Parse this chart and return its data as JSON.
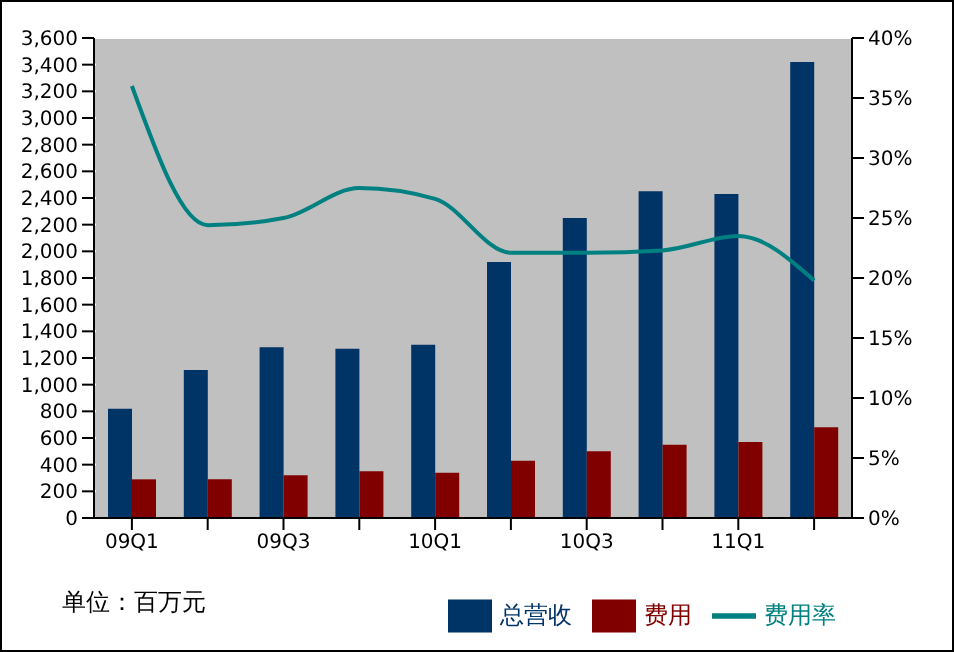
{
  "chart_data": {
    "type": "bar",
    "categories": [
      "09Q1",
      null,
      "09Q3",
      null,
      "10Q1",
      null,
      "10Q3",
      null,
      "11Q1",
      null
    ],
    "series": [
      {
        "name": "总营收",
        "color": "#003366",
        "values": [
          820,
          1110,
          1280,
          1270,
          1300,
          1920,
          2250,
          2450,
          2430,
          3420
        ]
      },
      {
        "name": "费用",
        "color": "#800000",
        "values": [
          290,
          290,
          320,
          350,
          340,
          430,
          500,
          550,
          570,
          680
        ]
      },
      {
        "name": "费用率",
        "type": "line",
        "axis": "y2",
        "color": "#008080",
        "values": [
          36,
          24.4,
          25,
          27.5,
          26.6,
          22.1,
          22.1,
          22.3,
          23.5,
          19.8
        ]
      }
    ],
    "ylim": [
      0,
      3600
    ],
    "yticks": [
      0,
      {
        "value": 200,
        "label": "200"
      },
      {
        "value": 400,
        "label": "400"
      },
      {
        "value": 600,
        "label": "600"
      },
      {
        "value": 800,
        "label": "800"
      },
      {
        "value": 1000,
        "label": "1,000"
      },
      {
        "value": 1200,
        "label": "1,200"
      },
      {
        "value": 1400,
        "label": "1,400"
      },
      {
        "value": 1600,
        "label": "1,600"
      },
      {
        "value": 1800,
        "label": "1,800"
      },
      {
        "value": 2000,
        "label": "2,000"
      },
      {
        "value": 2200,
        "label": "2,200"
      },
      {
        "value": 2400,
        "label": "2,400"
      },
      {
        "value": 2600,
        "label": "2,600"
      },
      {
        "value": 2800,
        "label": "2,800"
      },
      {
        "value": 3000,
        "label": "3,000"
      },
      {
        "value": 3200,
        "label": "3,200"
      },
      {
        "value": 3400,
        "label": "3,400"
      },
      {
        "value": 3600,
        "label": "3,600"
      }
    ],
    "y2lim": [
      0,
      40
    ],
    "y2ticks": [
      {
        "value": 0,
        "label": "0%"
      },
      {
        "value": 5,
        "label": "5%"
      },
      {
        "value": 10,
        "label": "10%"
      },
      {
        "value": 15,
        "label": "15%"
      },
      {
        "value": 20,
        "label": "20%"
      },
      {
        "value": 25,
        "label": "25%"
      },
      {
        "value": 30,
        "label": "30%"
      },
      {
        "value": 35,
        "label": "35%"
      },
      {
        "value": 40,
        "label": "40%"
      }
    ],
    "grid": "y",
    "legend": "bottom",
    "marker": "none",
    "line_style": "solid",
    "annotations": [
      "单位：百万元"
    ]
  }
}
